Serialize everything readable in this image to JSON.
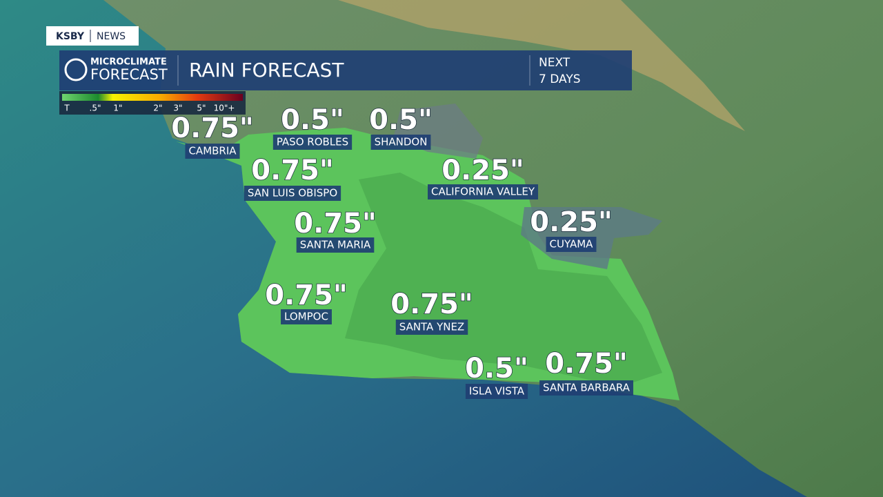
{
  "brand": {
    "station": "KSBY",
    "section": "NEWS"
  },
  "header": {
    "logo_top": "MICROCLIMATE",
    "logo_bottom": "FORECAST",
    "title": "RAIN FORECAST",
    "period_top": "NEXT",
    "period_bottom": "7 DAYS"
  },
  "legend": {
    "labels": [
      "T",
      ".5\"",
      "1\"",
      "2\"",
      "3\"",
      "5\"",
      "10\"+"
    ]
  },
  "locations": [
    {
      "name": "CAMBRIA",
      "amount": "0.75\""
    },
    {
      "name": "PASO ROBLES",
      "amount": "0.5\""
    },
    {
      "name": "SHANDON",
      "amount": "0.5\""
    },
    {
      "name": "SAN LUIS OBISPO",
      "amount": "0.75\""
    },
    {
      "name": "CALIFORNIA VALLEY",
      "amount": "0.25\""
    },
    {
      "name": "SANTA MARIA",
      "amount": "0.75\""
    },
    {
      "name": "CUYAMA",
      "amount": "0.25\""
    },
    {
      "name": "LOMPOC",
      "amount": "0.75\""
    },
    {
      "name": "SANTA YNEZ",
      "amount": "0.75\""
    },
    {
      "name": "ISLA VISTA",
      "amount": "0.5\""
    },
    {
      "name": "SANTA BARBARA",
      "amount": "0.75\""
    }
  ]
}
